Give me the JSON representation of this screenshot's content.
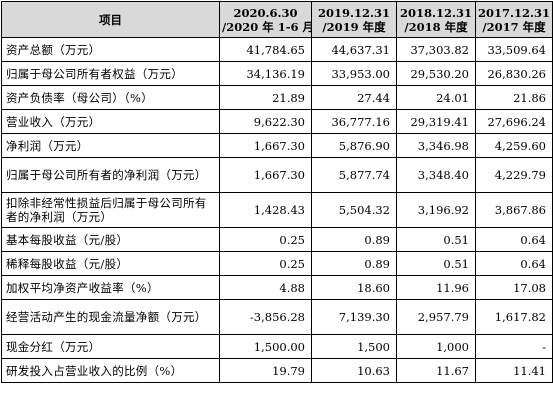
{
  "headers": {
    "item": "项目",
    "cols": [
      {
        "line1": "2020.6.30",
        "line2": "/2020 年 1-6 月"
      },
      {
        "line1": "2019.12.31",
        "line2": "/2019 年度"
      },
      {
        "line1": "2018.12.31",
        "line2": "/2018 年度"
      },
      {
        "line1": "2017.12.31",
        "line2": "/2017 年度"
      }
    ]
  },
  "rows": [
    {
      "label": "资产总额（万元）",
      "values": [
        "41,784.65",
        "44,637.31",
        "37,303.82",
        "33,509.64"
      ]
    },
    {
      "label": "归属于母公司所有者权益（万元）",
      "values": [
        "34,136.19",
        "33,953.00",
        "29,530.20",
        "26,830.26"
      ]
    },
    {
      "label": "资产负债率（母公司）（%）",
      "values": [
        "21.89",
        "27.44",
        "24.01",
        "21.86"
      ]
    },
    {
      "label": "营业收入（万元）",
      "values": [
        "9,622.30",
        "36,777.16",
        "29,319.41",
        "27,696.24"
      ]
    },
    {
      "label": "净利润（万元）",
      "values": [
        "1,667.30",
        "5,876.90",
        "3,346.98",
        "4,259.60"
      ]
    },
    {
      "label": "归属于母公司所有者的净利润（万元）",
      "values": [
        "1,667.30",
        "5,877.74",
        "3,348.40",
        "4,229.79"
      ]
    },
    {
      "label": "扣除非经常性损益后归属于母公司所有者的净利润（万元）",
      "values": [
        "1,428.43",
        "5,504.32",
        "3,196.92",
        "3,867.86"
      ]
    },
    {
      "label": "基本每股收益（元/股）",
      "values": [
        "0.25",
        "0.89",
        "0.51",
        "0.64"
      ]
    },
    {
      "label": "稀释每股收益（元/股）",
      "values": [
        "0.25",
        "0.89",
        "0.51",
        "0.64"
      ]
    },
    {
      "label": "加权平均净资产收益率（%）",
      "values": [
        "4.88",
        "18.60",
        "11.96",
        "17.08"
      ]
    },
    {
      "label": "经营活动产生的现金流量净额（万元）",
      "values": [
        "-3,856.28",
        "7,139.30",
        "2,957.79",
        "1,617.82"
      ]
    },
    {
      "label": "现金分红（万元）",
      "values": [
        "1,500.00",
        "1,500",
        "1,000",
        "-"
      ]
    },
    {
      "label": "研发投入占营业收入的比例（%）",
      "values": [
        "19.79",
        "10.63",
        "11.67",
        "11.41"
      ]
    }
  ]
}
